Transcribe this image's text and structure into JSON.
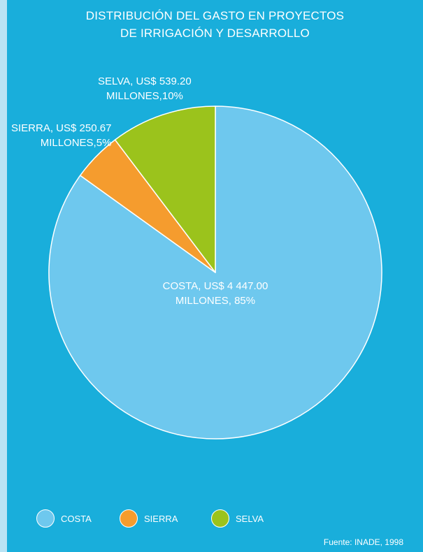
{
  "title_lines": [
    "DISTRIBUCIÓN DEL GASTO EN PROYECTOS",
    "DE IRRIGACIÓN Y DESARROLLO"
  ],
  "source": "Fuente: INADE, 1998",
  "colors": {
    "background": "#19aedb",
    "costa": "#6ec8ee",
    "sierra": "#f59c2e",
    "selva": "#9bc31c",
    "stroke": "#ffffff"
  },
  "chart_data": {
    "type": "pie",
    "title": "DISTRIBUCIÓN DEL GASTO EN PROYECTOS DE IRRIGACIÓN Y DESARROLLO",
    "unit": "US$ millones",
    "slices": [
      {
        "key": "costa",
        "name": "COSTA",
        "value": 4447.0,
        "percent": 85,
        "label_lines": [
          "COSTA, US$ 4 447.00",
          "MILLONES, 85%"
        ]
      },
      {
        "key": "sierra",
        "name": "SIERRA",
        "value": 250.67,
        "percent": 5,
        "label_lines": [
          "SIERRA, US$ 250.67",
          "MILLONES,5%"
        ]
      },
      {
        "key": "selva",
        "name": "SELVA",
        "value": 539.2,
        "percent": 10,
        "label_lines": [
          "SELVA, US$ 539.20",
          "MILLONES,10%"
        ]
      }
    ],
    "legend": {
      "placement": "bottom",
      "items": [
        {
          "key": "costa",
          "label": "COSTA"
        },
        {
          "key": "sierra",
          "label": "SIERRA"
        },
        {
          "key": "selva",
          "label": "SELVA"
        }
      ]
    }
  }
}
